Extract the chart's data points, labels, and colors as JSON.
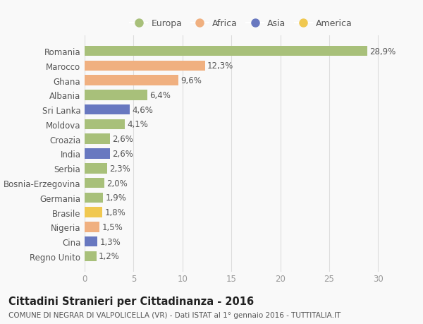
{
  "countries": [
    "Romania",
    "Marocco",
    "Ghana",
    "Albania",
    "Sri Lanka",
    "Moldova",
    "Croazia",
    "India",
    "Serbia",
    "Bosnia-Erzegovina",
    "Germania",
    "Brasile",
    "Nigeria",
    "Cina",
    "Regno Unito"
  ],
  "values": [
    28.9,
    12.3,
    9.6,
    6.4,
    4.6,
    4.1,
    2.6,
    2.6,
    2.3,
    2.0,
    1.9,
    1.8,
    1.5,
    1.3,
    1.2
  ],
  "labels": [
    "28,9%",
    "12,3%",
    "9,6%",
    "6,4%",
    "4,6%",
    "4,1%",
    "2,6%",
    "2,6%",
    "2,3%",
    "2,0%",
    "1,9%",
    "1,8%",
    "1,5%",
    "1,3%",
    "1,2%"
  ],
  "continents": [
    "Europa",
    "Africa",
    "Africa",
    "Europa",
    "Asia",
    "Europa",
    "Europa",
    "Asia",
    "Europa",
    "Europa",
    "Europa",
    "America",
    "Africa",
    "Asia",
    "Europa"
  ],
  "colors": {
    "Europa": "#a8c07a",
    "Africa": "#f0b080",
    "Asia": "#6878c0",
    "America": "#f0c850"
  },
  "xlim": [
    0,
    32
  ],
  "xticks": [
    0,
    5,
    10,
    15,
    20,
    25,
    30
  ],
  "title": "Cittadini Stranieri per Cittadinanza - 2016",
  "subtitle": "COMUNE DI NEGRAR DI VALPOLICELLA (VR) - Dati ISTAT al 1° gennaio 2016 - TUTTITALIA.IT",
  "bg_color": "#f9f9f9",
  "grid_color": "#dddddd",
  "bar_height": 0.7,
  "label_fontsize": 8.5,
  "tick_fontsize": 8.5,
  "ytick_fontsize": 8.5,
  "title_fontsize": 10.5,
  "subtitle_fontsize": 7.5,
  "legend_order": [
    "Europa",
    "Africa",
    "Asia",
    "America"
  ]
}
